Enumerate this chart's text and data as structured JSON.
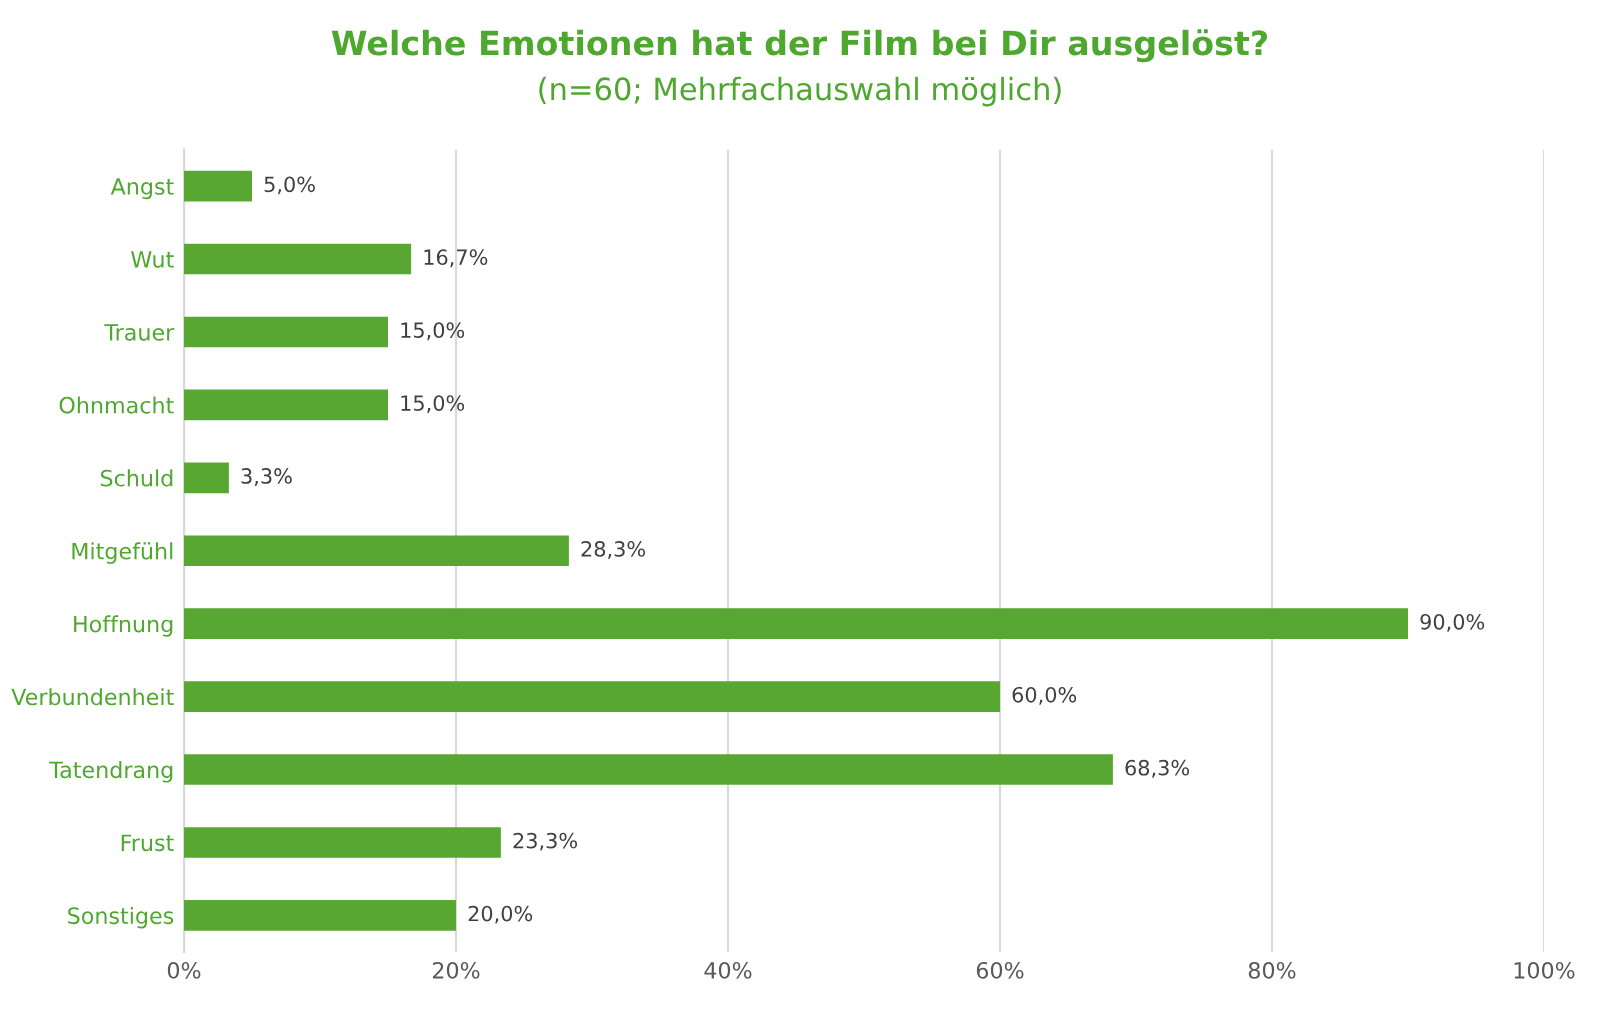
{
  "chart_data": {
    "type": "bar",
    "orientation": "horizontal",
    "title": "Welche Emotionen hat der Film bei Dir ausgelöst?",
    "subtitle": "(n=60; Mehrfachauswahl möglich)",
    "categories": [
      "Angst",
      "Wut",
      "Trauer",
      "Ohnmacht",
      "Schuld",
      "Mitgefühl",
      "Hoffnung",
      "Verbundenheit",
      "Tatendrang",
      "Frust",
      "Sonstiges"
    ],
    "values": [
      5.0,
      16.7,
      15.0,
      15.0,
      3.3,
      28.3,
      90.0,
      60.0,
      68.3,
      23.3,
      20.0
    ],
    "value_labels": [
      "5,0%",
      "16,7%",
      "15,0%",
      "15,0%",
      "3,3%",
      "28,3%",
      "90,0%",
      "60,0%",
      "68,3%",
      "23,3%",
      "20,0%"
    ],
    "color": "#58a732",
    "xlim": [
      0,
      100
    ],
    "xticks": [
      {
        "value": 0,
        "label": "0%"
      },
      {
        "value": 20,
        "label": "20%"
      },
      {
        "value": 40,
        "label": "40%"
      },
      {
        "value": 60,
        "label": "60%"
      },
      {
        "value": 80,
        "label": "80%"
      },
      {
        "value": 100,
        "label": "100%"
      }
    ],
    "grid": "x",
    "legend": false
  }
}
